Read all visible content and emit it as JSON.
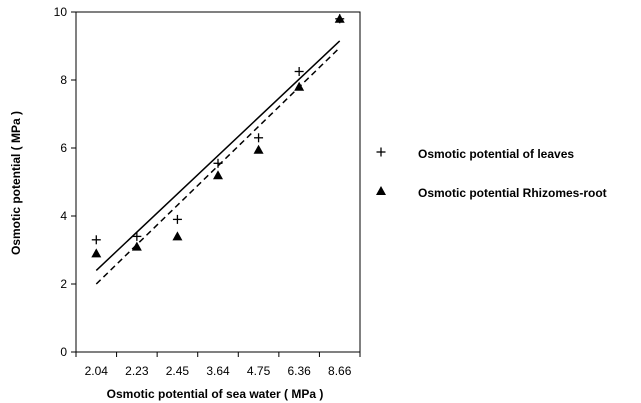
{
  "chart_data": {
    "type": "scatter",
    "title": "",
    "xlabel": "Osmotic potential of sea water ( MPa )",
    "ylabel": "Osmotic potential ( MPa )",
    "categories": [
      "2.04",
      "2.23",
      "2.45",
      "3.64",
      "4.75",
      "6.36",
      "8.66"
    ],
    "ylim": [
      0,
      10
    ],
    "yticks": [
      0,
      2,
      4,
      6,
      8,
      10
    ],
    "grid": false,
    "legend_position": "right",
    "series": [
      {
        "name": "Osmotic potential of leaves",
        "marker": "plus",
        "values": [
          3.3,
          3.4,
          3.9,
          5.55,
          6.3,
          8.25,
          9.8
        ],
        "trendline": {
          "style": "solid",
          "start": 2.4,
          "end": 9.15
        }
      },
      {
        "name": "Osmotic potential Rhizomes-root",
        "marker": "triangle",
        "values": [
          2.9,
          3.1,
          3.4,
          5.2,
          5.95,
          7.8,
          9.8
        ],
        "trendline": {
          "style": "dashed",
          "start": 2.0,
          "end": 8.95
        }
      }
    ]
  },
  "colors": {
    "ink": "#000000",
    "background": "#ffffff"
  }
}
